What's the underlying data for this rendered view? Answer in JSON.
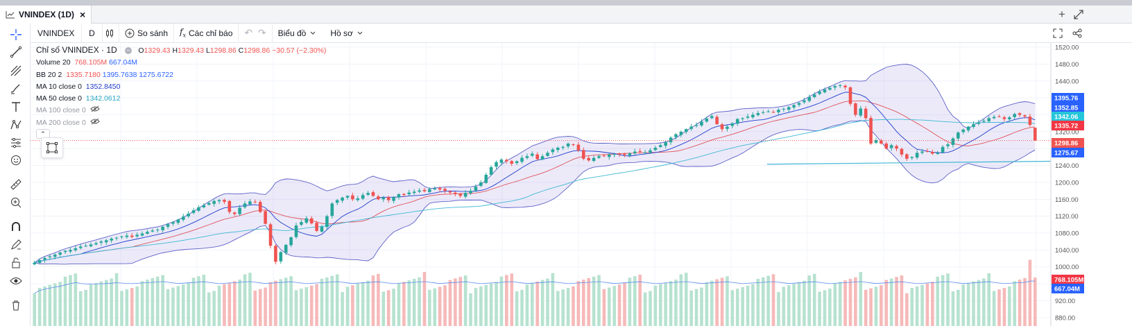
{
  "tab": {
    "title": "VNINDEX (1D)",
    "close": "×"
  },
  "toolbar": {
    "symbol": "VNINDEX",
    "interval": "D",
    "compare": "So sánh",
    "indicators": "Các chỉ báo",
    "chart_type": "Biểu đồ",
    "template": "Hồ sơ"
  },
  "legend": {
    "title": "Chỉ số VNINDEX · 1D",
    "o_label": "O",
    "o": "1329.43",
    "h_label": "H",
    "h": "1329.43",
    "l_label": "L",
    "l": "1298.86",
    "c_label": "C",
    "c": "1298.86",
    "chg": "−30.57 (−2.30%)",
    "vol_label": "Volume 20",
    "vol1": "768.105M",
    "vol2": "667.04M",
    "bb_label": "BB 20 2",
    "bb1": "1335.7180",
    "bb2": "1395.7638",
    "bb3": "1275.6722",
    "ma10_label": "MA 10 close 0",
    "ma10": "1352.8450",
    "ma50_label": "MA 50 close 0",
    "ma50": "1342.0612",
    "ma100_label": "MA 100 close 0",
    "ma200_label": "MA 200 close 0"
  },
  "colors": {
    "up": "#26a69a",
    "down": "#ef5350",
    "bb": "#5b5fc7",
    "ma10": "#1e3bcc",
    "ma50": "#3fb7d4",
    "bb_mid": "#e0525a",
    "vol_up": "#b7e2d0",
    "vol_down": "#f6b9b9"
  },
  "chart_data": {
    "type": "candlestick",
    "symbol": "VNINDEX",
    "interval": "1D",
    "y_axis_ticks": [
      "1520.00",
      "1480.00",
      "1440.00",
      "1400.00",
      "1360.00",
      "1320.00",
      "1280.00",
      "1240.00",
      "1200.00",
      "1160.00",
      "1120.00",
      "1080.00",
      "1040.00",
      "1000.00",
      "960.00",
      "920.00",
      "880.00"
    ],
    "ylim": [
      860,
      1530
    ],
    "price_tags": [
      {
        "label": "1395.76",
        "value": 1395.76,
        "color": "#2962ff"
      },
      {
        "label": "1352.85",
        "value": 1352.85,
        "color": "#2962ff"
      },
      {
        "label": "1342.06",
        "value": 1342.06,
        "color": "#26c6da"
      },
      {
        "label": "1335.72",
        "value": 1335.72,
        "color": "#f23645"
      },
      {
        "label": "1298.86",
        "value": 1298.86,
        "color": "#ef5350"
      },
      {
        "label": "1275.67",
        "value": 1275.67,
        "color": "#2962ff"
      }
    ],
    "volume_tags": [
      {
        "label": "768.105M",
        "value": 768.105,
        "color": "#f23645"
      },
      {
        "label": "667.04M",
        "value": 667.04,
        "color": "#2962ff"
      }
    ],
    "closes": [
      1010,
      1016,
      1021,
      1025,
      1029,
      1034,
      1038,
      1040,
      1044,
      1048,
      1050,
      1053,
      1056,
      1060,
      1063,
      1067,
      1069,
      1072,
      1074,
      1071,
      1076,
      1079,
      1083,
      1086,
      1088,
      1095,
      1101,
      1106,
      1112,
      1119,
      1126,
      1134,
      1141,
      1146,
      1151,
      1156,
      1158,
      1154,
      1130,
      1125,
      1140,
      1150,
      1155,
      1153,
      1130,
      1102,
      1050,
      1012,
      1035,
      1052,
      1070,
      1098,
      1106,
      1115,
      1103,
      1085,
      1095,
      1120,
      1150,
      1158,
      1164,
      1168,
      1160,
      1162,
      1170,
      1175,
      1168,
      1160,
      1164,
      1158,
      1165,
      1172,
      1170,
      1176,
      1178,
      1181,
      1179,
      1184,
      1186,
      1183,
      1180,
      1176,
      1172,
      1168,
      1175,
      1180,
      1190,
      1200,
      1218,
      1236,
      1248,
      1254,
      1250,
      1244,
      1250,
      1258,
      1262,
      1268,
      1255,
      1262,
      1270,
      1278,
      1282,
      1284,
      1292,
      1290,
      1276,
      1256,
      1252,
      1258,
      1262,
      1262,
      1266,
      1267,
      1266,
      1265,
      1269,
      1273,
      1272,
      1271,
      1276,
      1282,
      1288,
      1295,
      1306,
      1314,
      1320,
      1326,
      1332,
      1336,
      1344,
      1351,
      1357,
      1338,
      1326,
      1332,
      1340,
      1350,
      1352,
      1356,
      1360,
      1364,
      1366,
      1368,
      1366,
      1372,
      1374,
      1378,
      1383,
      1388,
      1394,
      1402,
      1408,
      1415,
      1420,
      1424,
      1428,
      1430,
      1425,
      1386,
      1360,
      1375,
      1352,
      1292,
      1300,
      1292,
      1280,
      1288,
      1280,
      1266,
      1256,
      1260,
      1270,
      1273,
      1274,
      1268,
      1270,
      1284,
      1290,
      1304,
      1318,
      1325,
      1332,
      1338,
      1342,
      1346,
      1352,
      1355,
      1356,
      1350,
      1354,
      1362,
      1360,
      1356,
      1336,
      1299
    ]
  }
}
